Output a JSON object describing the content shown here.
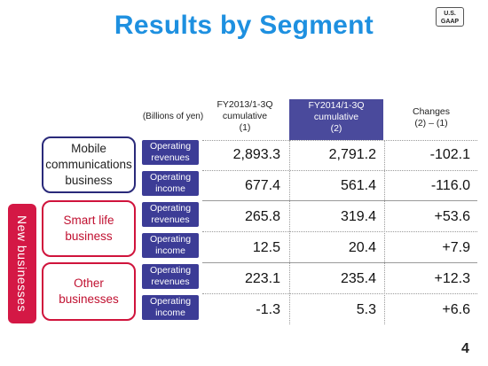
{
  "title": "Results by Segment",
  "badge": {
    "line1": "U.S.",
    "line2": "GAAP"
  },
  "units": "(Billions of yen)",
  "columns": {
    "c1": {
      "line1": "FY2013/1-3Q",
      "line2": "cumulative",
      "line3": "(1)"
    },
    "c2": {
      "line1": "FY2014/1-3Q",
      "line2": "cumulative",
      "line3": "(2)"
    },
    "c3": {
      "line1": "Changes",
      "line2": "(2) – (1)"
    }
  },
  "new_businesses_label": "New businesses",
  "segments": [
    {
      "name_lines": [
        "Mobile",
        "communications",
        "business"
      ]
    },
    {
      "name_lines": [
        "Smart life",
        "business"
      ]
    },
    {
      "name_lines": [
        "Other",
        "businesses"
      ]
    }
  ],
  "metrics": {
    "revenue": {
      "line1": "Operating",
      "line2": "revenues"
    },
    "income": {
      "line1": "Operating",
      "line2": "income"
    }
  },
  "rows": [
    {
      "c1": "2,893.3",
      "c2": "2,791.2",
      "c3": "-102.1"
    },
    {
      "c1": "677.4",
      "c2": "561.4",
      "c3": "-116.0"
    },
    {
      "c1": "265.8",
      "c2": "319.4",
      "c3": "+53.6"
    },
    {
      "c1": "12.5",
      "c2": "20.4",
      "c3": "+7.9"
    },
    {
      "c1": "223.1",
      "c2": "235.4",
      "c3": "+12.3"
    },
    {
      "c1": "-1.3",
      "c2": "5.3",
      "c3": "+6.6"
    }
  ],
  "page_number": "4",
  "colors": {
    "title": "#1e90e0",
    "header_highlight": "#4a4a9c",
    "label_bg": "#3c3c96",
    "new_biz": "#d41845",
    "mobile_border": "#2a2a7a"
  }
}
